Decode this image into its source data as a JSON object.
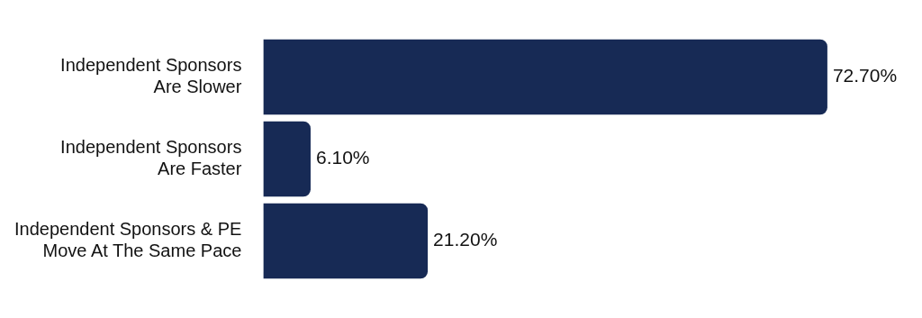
{
  "chart_data": {
    "type": "bar",
    "orientation": "horizontal",
    "categories": [
      "Independent Sponsors\nAre Slower",
      "Independent Sponsors\nAre Faster",
      "Independent Sponsors & PE\nMove At The Same Pace"
    ],
    "values": [
      72.7,
      6.1,
      21.2
    ],
    "color": "#172a55",
    "value_labels": [
      "72.70%",
      "6.10%",
      "21.20%"
    ],
    "tick_labels": "y"
  }
}
